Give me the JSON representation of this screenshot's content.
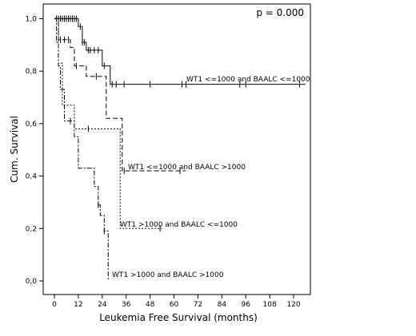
{
  "chart_data": {
    "type": "line",
    "subtype": "kaplan-meier step curves",
    "xlabel": "Leukemia Free Survival (months)",
    "ylabel": "Cum. Survival",
    "xlim": [
      0,
      126
    ],
    "ylim": [
      0,
      1.05
    ],
    "x_ticks": [
      0,
      12,
      24,
      36,
      48,
      60,
      72,
      84,
      96,
      108,
      120
    ],
    "y_ticks": [
      0.0,
      0.2,
      0.4,
      0.6,
      0.8,
      1.0
    ],
    "y_tick_labels": [
      "0,0",
      "0,2",
      "0,4",
      "0,6",
      "0,8",
      "1,0"
    ],
    "grid": false,
    "p_value_text": "p = 0.000",
    "series": [
      {
        "name": "WT1 <=1000 and BAALC <=1000",
        "dash": "solid",
        "steps": [
          [
            0,
            1.0
          ],
          [
            12,
            0.97
          ],
          [
            14,
            0.91
          ],
          [
            16,
            0.88
          ],
          [
            24,
            0.82
          ],
          [
            28,
            0.75
          ],
          [
            126,
            0.75
          ]
        ],
        "censors": [
          [
            1,
            1.0
          ],
          [
            2,
            1.0
          ],
          [
            3,
            1.0
          ],
          [
            4,
            1.0
          ],
          [
            5,
            1.0
          ],
          [
            6,
            1.0
          ],
          [
            7,
            1.0
          ],
          [
            8,
            1.0
          ],
          [
            9,
            1.0
          ],
          [
            10,
            1.0
          ],
          [
            11,
            1.0
          ],
          [
            13,
            0.97
          ],
          [
            14,
            0.91
          ],
          [
            15,
            0.91
          ],
          [
            17,
            0.88
          ],
          [
            18,
            0.88
          ],
          [
            20,
            0.88
          ],
          [
            22,
            0.88
          ],
          [
            25,
            0.82
          ],
          [
            29,
            0.75
          ],
          [
            31,
            0.75
          ],
          [
            35,
            0.75
          ],
          [
            48,
            0.75
          ],
          [
            64,
            0.75
          ],
          [
            66,
            0.75
          ],
          [
            93,
            0.75
          ],
          [
            96,
            0.75
          ],
          [
            123,
            0.75
          ]
        ]
      },
      {
        "name": "WT1 <=1000 and BAALC >1000",
        "dash": "dashed",
        "steps": [
          [
            0,
            1.0
          ],
          [
            2,
            0.92
          ],
          [
            8,
            0.89
          ],
          [
            10,
            0.82
          ],
          [
            16,
            0.78
          ],
          [
            26,
            0.62
          ],
          [
            34,
            0.42
          ],
          [
            66,
            0.42
          ]
        ],
        "censors": [
          [
            1,
            1.0
          ],
          [
            3,
            0.92
          ],
          [
            5,
            0.92
          ],
          [
            7,
            0.92
          ],
          [
            11,
            0.82
          ],
          [
            21,
            0.78
          ],
          [
            35,
            0.42
          ],
          [
            63,
            0.42
          ]
        ]
      },
      {
        "name": "WT1 >1000 and BAALC <=1000",
        "dash": "dotted",
        "steps": [
          [
            0,
            1.0
          ],
          [
            2,
            0.83
          ],
          [
            4,
            0.67
          ],
          [
            10,
            0.58
          ],
          [
            33,
            0.2
          ],
          [
            54,
            0.2
          ]
        ],
        "censors": [
          [
            1,
            1.0
          ],
          [
            17,
            0.58
          ],
          [
            53,
            0.2
          ]
        ]
      },
      {
        "name": "WT1 >1000 and BAALC >1000",
        "dash": "dashdot",
        "steps": [
          [
            0,
            1.0
          ],
          [
            1,
            0.91
          ],
          [
            2,
            0.82
          ],
          [
            3,
            0.73
          ],
          [
            5,
            0.61
          ],
          [
            10,
            0.55
          ],
          [
            12,
            0.43
          ],
          [
            20,
            0.36
          ],
          [
            22,
            0.29
          ],
          [
            23,
            0.25
          ],
          [
            25,
            0.19
          ],
          [
            27,
            0.17
          ],
          [
            27,
            0.0
          ]
        ],
        "censors": [
          [
            1,
            1.0
          ],
          [
            8,
            0.61
          ],
          [
            22,
            0.29
          ],
          [
            25,
            0.19
          ]
        ]
      }
    ]
  }
}
